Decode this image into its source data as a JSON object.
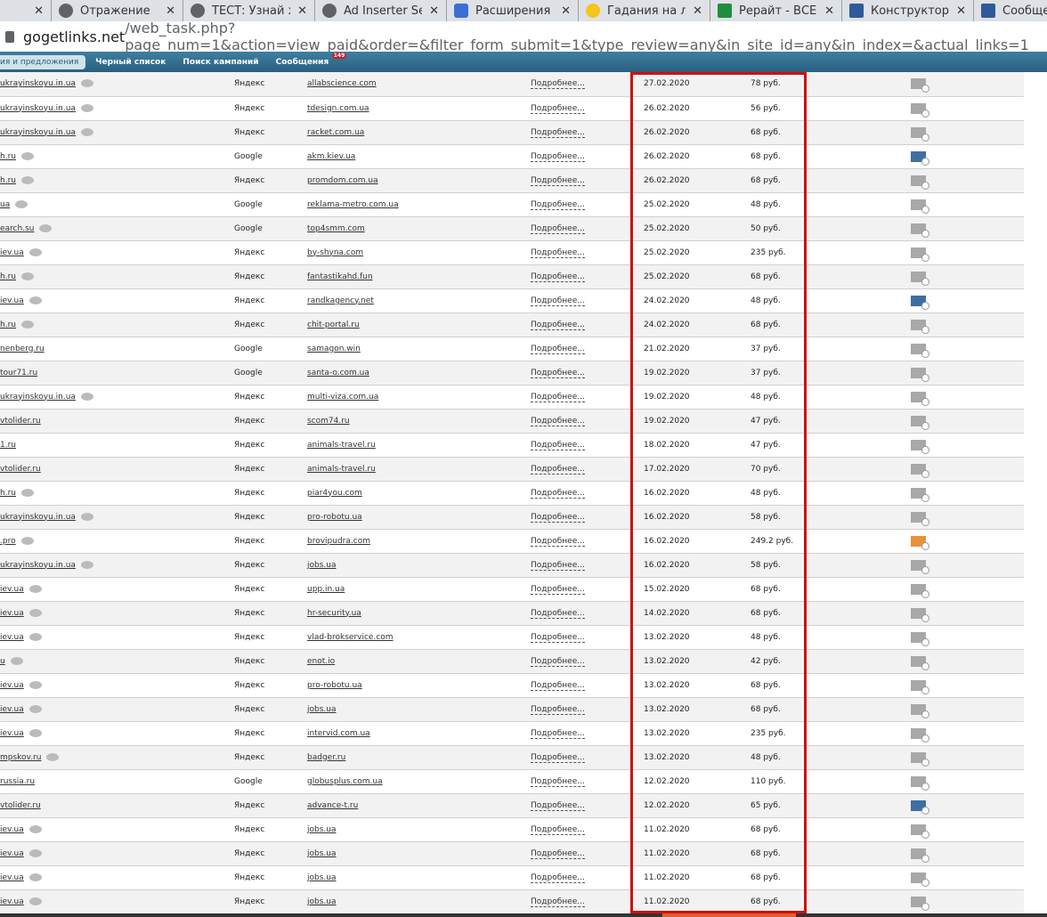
{
  "tabs": [
    {
      "title": "",
      "icon": "globe-icon"
    },
    {
      "title": "Отражение",
      "icon": "globe-icon"
    },
    {
      "title": "ТЕСТ: Узнай ха",
      "icon": "globe-icon"
    },
    {
      "title": "Ad Inserter Set",
      "icon": "globe-icon"
    },
    {
      "title": "Расширения",
      "icon": "puzzle-icon"
    },
    {
      "title": "Гадания на лк",
      "icon": "bulb-icon"
    },
    {
      "title": "Рерайт - ВСЕ С",
      "icon": "sheet-icon"
    },
    {
      "title": "Конструктор т",
      "icon": "monitor-icon"
    },
    {
      "title": "Сообщения -",
      "icon": "monitor-icon"
    }
  ],
  "url": {
    "host": "gogetlinks.net",
    "path": "/web_task.php?page_num=1&action=view_paid&order=&filter_form_submit=1&type_review=any&in_site_id=any&in_index=&actual_links=1"
  },
  "nav": {
    "items": [
      "ия и предложения",
      "Черный список",
      "Поиск кампаний",
      "Сообщения"
    ],
    "messages_badge": "149"
  },
  "more_label": "Подробнее...",
  "colors": {
    "highlight": "#cc1111",
    "nav": "#2a5f80",
    "env_gray": "#a8a8a8",
    "env_blue": "#3e6fa3",
    "env_orange": "#e8923a"
  },
  "rows": [
    {
      "site": "ukrayinskoyu.in.ua",
      "news": true,
      "engine": "Яндекс",
      "domain": "allabscience.com",
      "date": "27.02.2020",
      "price": "78 руб.",
      "env": "gray"
    },
    {
      "site": "ukrayinskoyu.in.ua",
      "news": true,
      "engine": "Яндекс",
      "domain": "tdesign.com.ua",
      "date": "26.02.2020",
      "price": "56 руб.",
      "env": "gray"
    },
    {
      "site": "ukrayinskoyu.in.ua",
      "news": true,
      "engine": "Яндекс",
      "domain": "racket.com.ua",
      "date": "26.02.2020",
      "price": "68 руб.",
      "env": "gray"
    },
    {
      "site": "h.ru",
      "news": true,
      "engine": "Google",
      "domain": "akm.kiev.ua",
      "date": "26.02.2020",
      "price": "68 руб.",
      "env": "blue"
    },
    {
      "site": "h.ru",
      "news": true,
      "engine": "Яндекс",
      "domain": "promdom.com.ua",
      "date": "26.02.2020",
      "price": "68 руб.",
      "env": "gray"
    },
    {
      "site": "ua",
      "news": true,
      "engine": "Google",
      "domain": "reklama-metro.com.ua",
      "date": "25.02.2020",
      "price": "48 руб.",
      "env": "gray"
    },
    {
      "site": "earch.su",
      "news": true,
      "engine": "Google",
      "domain": "top4smm.com",
      "date": "25.02.2020",
      "price": "50 руб.",
      "env": "gray"
    },
    {
      "site": "iev.ua",
      "news": true,
      "engine": "Яндекс",
      "domain": "by-shyna.com",
      "date": "25.02.2020",
      "price": "235 руб.",
      "env": "gray"
    },
    {
      "site": "h.ru",
      "news": true,
      "engine": "Яндекс",
      "domain": "fantastikahd.fun",
      "date": "25.02.2020",
      "price": "68 руб.",
      "env": "gray"
    },
    {
      "site": "iev.ua",
      "news": true,
      "engine": "Яндекс",
      "domain": "randkagency.net",
      "date": "24.02.2020",
      "price": "48 руб.",
      "env": "blue"
    },
    {
      "site": "h.ru",
      "news": true,
      "engine": "Яндекс",
      "domain": "chit-portal.ru",
      "date": "24.02.2020",
      "price": "68 руб.",
      "env": "gray"
    },
    {
      "site": "nenberg.ru",
      "news": false,
      "engine": "Google",
      "domain": "samagon.win",
      "date": "21.02.2020",
      "price": "37 руб.",
      "env": "gray"
    },
    {
      "site": "tour71.ru",
      "news": false,
      "engine": "Google",
      "domain": "santa-o.com.ua",
      "date": "19.02.2020",
      "price": "37 руб.",
      "env": "gray"
    },
    {
      "site": "ukrayinskoyu.in.ua",
      "news": true,
      "engine": "Яндекс",
      "domain": "multi-viza.com.ua",
      "date": "19.02.2020",
      "price": "48 руб.",
      "env": "gray"
    },
    {
      "site": "vtolider.ru",
      "news": false,
      "engine": "Яндекс",
      "domain": "scom74.ru",
      "date": "19.02.2020",
      "price": "47 руб.",
      "env": "gray"
    },
    {
      "site": "1.ru",
      "news": false,
      "engine": "Яндекс",
      "domain": "animals-travel.ru",
      "date": "18.02.2020",
      "price": "47 руб.",
      "env": "gray"
    },
    {
      "site": "vtolider.ru",
      "news": false,
      "engine": "Яндекс",
      "domain": "animals-travel.ru",
      "date": "17.02.2020",
      "price": "70 руб.",
      "env": "gray"
    },
    {
      "site": "h.ru",
      "news": true,
      "engine": "Яндекс",
      "domain": "piar4you.com",
      "date": "16.02.2020",
      "price": "48 руб.",
      "env": "gray"
    },
    {
      "site": "ukrayinskoyu.in.ua",
      "news": true,
      "engine": "Яндекс",
      "domain": "pro-robotu.ua",
      "date": "16.02.2020",
      "price": "58 руб.",
      "env": "gray"
    },
    {
      "site": ".pro",
      "news": true,
      "engine": "Яндекс",
      "domain": "brovipudra.com",
      "date": "16.02.2020",
      "price": "249.2 руб.",
      "env": "orange"
    },
    {
      "site": "ukrayinskoyu.in.ua",
      "news": true,
      "engine": "Яндекс",
      "domain": "jobs.ua",
      "date": "16.02.2020",
      "price": "58 руб.",
      "env": "gray"
    },
    {
      "site": "iev.ua",
      "news": true,
      "engine": "Яндекс",
      "domain": "upp.in.ua",
      "date": "15.02.2020",
      "price": "68 руб.",
      "env": "gray"
    },
    {
      "site": "iev.ua",
      "news": true,
      "engine": "Яндекс",
      "domain": "hr-security.ua",
      "date": "14.02.2020",
      "price": "68 руб.",
      "env": "gray"
    },
    {
      "site": "iev.ua",
      "news": true,
      "engine": "Яндекс",
      "domain": "vlad-brokservice.com",
      "date": "13.02.2020",
      "price": "48 руб.",
      "env": "gray"
    },
    {
      "site": "u",
      "news": true,
      "engine": "Яндекс",
      "domain": "enot.io",
      "date": "13.02.2020",
      "price": "42 руб.",
      "env": "gray"
    },
    {
      "site": "iev.ua",
      "news": true,
      "engine": "Яндекс",
      "domain": "pro-robotu.ua",
      "date": "13.02.2020",
      "price": "68 руб.",
      "env": "gray"
    },
    {
      "site": "iev.ua",
      "news": true,
      "engine": "Яндекс",
      "domain": "jobs.ua",
      "date": "13.02.2020",
      "price": "68 руб.",
      "env": "gray"
    },
    {
      "site": "iev.ua",
      "news": true,
      "engine": "Яндекс",
      "domain": "intervid.com.ua",
      "date": "13.02.2020",
      "price": "235 руб.",
      "env": "gray"
    },
    {
      "site": "mpskov.ru",
      "news": true,
      "engine": "Яндекс",
      "domain": "badger.ru",
      "date": "13.02.2020",
      "price": "48 руб.",
      "env": "gray"
    },
    {
      "site": "russia.ru",
      "news": false,
      "engine": "Google",
      "domain": "globusplus.com.ua",
      "date": "12.02.2020",
      "price": "110 руб.",
      "env": "gray"
    },
    {
      "site": "vtolider.ru",
      "news": false,
      "engine": "Яндекс",
      "domain": "advance-t.ru",
      "date": "12.02.2020",
      "price": "65 руб.",
      "env": "blue"
    },
    {
      "site": "iev.ua",
      "news": true,
      "engine": "Яндекс",
      "domain": "jobs.ua",
      "date": "11.02.2020",
      "price": "68 руб.",
      "env": "gray"
    },
    {
      "site": "iev.ua",
      "news": true,
      "engine": "Яндекс",
      "domain": "jobs.ua",
      "date": "11.02.2020",
      "price": "68 руб.",
      "env": "gray"
    },
    {
      "site": "iev.ua",
      "news": true,
      "engine": "Яндекс",
      "domain": "jobs.ua",
      "date": "11.02.2020",
      "price": "68 руб.",
      "env": "gray"
    },
    {
      "site": "iev.ua",
      "news": true,
      "engine": "Яндекс",
      "domain": "jobs.ua",
      "date": "11.02.2020",
      "price": "68 руб.",
      "env": "gray"
    }
  ]
}
